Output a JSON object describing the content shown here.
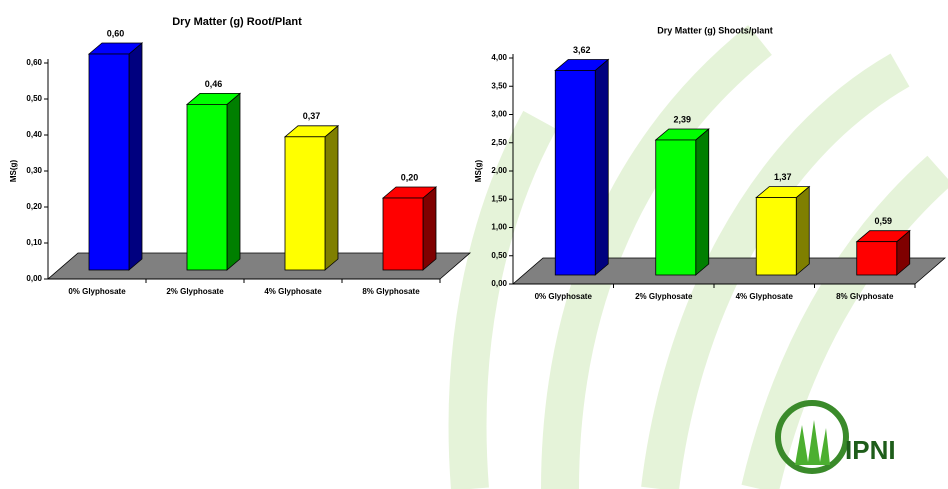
{
  "chart_data": [
    {
      "type": "bar3d",
      "title": "Dry Matter (g) Root/Plant",
      "y_label": "MS(g)",
      "categories": [
        "0% Glyphosate",
        "2% Glyphosate",
        "4% Glyphosate",
        "8% Glyphosate"
      ],
      "values": [
        0.6,
        0.46,
        0.37,
        0.2
      ],
      "value_labels": [
        "0,60",
        "0,46",
        "0,37",
        "0,20"
      ],
      "colors": [
        "#0000ff",
        "#00ff00",
        "#ffff00",
        "#ff0000"
      ],
      "ylim": [
        0,
        0.6
      ],
      "yticks": [
        {
          "value": 0,
          "label": "0,00"
        },
        {
          "value": 0.1,
          "label": "0,10"
        },
        {
          "value": 0.2,
          "label": "0,20"
        },
        {
          "value": 0.3,
          "label": "0,30"
        },
        {
          "value": 0.4,
          "label": "0,40"
        },
        {
          "value": 0.5,
          "label": "0,50"
        },
        {
          "value": 0.6,
          "label": "0,60"
        }
      ]
    },
    {
      "type": "bar3d",
      "title": "Dry Matter (g) Shoots/plant",
      "y_label": "MS(g)",
      "categories": [
        "0% Glyphosate",
        "2% Glyphosate",
        "4% Glyphosate",
        "8% Glyphosate"
      ],
      "values": [
        3.62,
        2.39,
        1.37,
        0.59
      ],
      "value_labels": [
        "3,62",
        "2,39",
        "1,37",
        "0,59"
      ],
      "colors": [
        "#0000ff",
        "#00ff00",
        "#ffff00",
        "#ff0000"
      ],
      "ylim": [
        0,
        4
      ],
      "yticks": [
        {
          "value": 0,
          "label": "0,00"
        },
        {
          "value": 0.5,
          "label": "0,50"
        },
        {
          "value": 1,
          "label": "1,00"
        },
        {
          "value": 1.5,
          "label": "1,50"
        },
        {
          "value": 2,
          "label": "2,00"
        },
        {
          "value": 2.5,
          "label": "2,50"
        },
        {
          "value": 3,
          "label": "3,00"
        },
        {
          "value": 3.5,
          "label": "3,50"
        },
        {
          "value": 4,
          "label": "4,00"
        }
      ]
    }
  ],
  "logo": "IPNI"
}
